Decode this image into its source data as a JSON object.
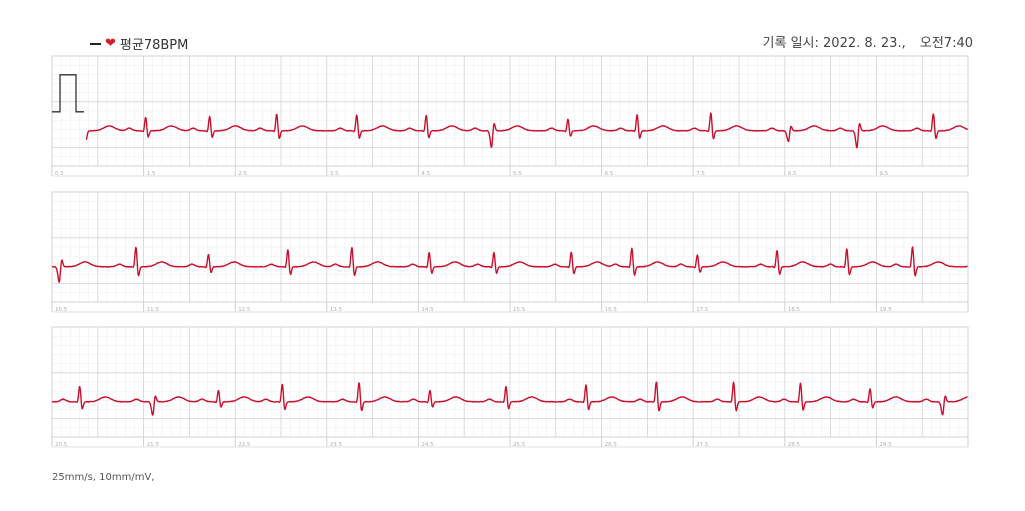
{
  "legend": {
    "dash_icon": "dash-icon",
    "heart_icon": "heart-icon",
    "text": "평균78BPM",
    "heart_color": "#d41f2a"
  },
  "record": {
    "label": "기록 일시:",
    "date": "2022. 8. 23.,",
    "time": "오전7:40"
  },
  "footer": {
    "scale": "25mm/s, 10mm/mV,"
  },
  "colors": {
    "trace": "#c8102e",
    "grid_minor": "#ececec",
    "grid_major": "#d3d3d3",
    "calibration": "#333333"
  },
  "chart_data": {
    "type": "line",
    "title": "",
    "strips": [
      {
        "tick_labels": [
          "0.5",
          "1.5",
          "2.5",
          "3.5",
          "4.5",
          "5.5",
          "6.5",
          "7.5",
          "8.5",
          "9.5"
        ]
      },
      {
        "tick_labels": [
          "10.5",
          "11.5",
          "12.5",
          "13.5",
          "14.5",
          "15.5",
          "16.5",
          "17.5",
          "18.5",
          "19.5"
        ]
      },
      {
        "tick_labels": [
          "20.5",
          "21.5",
          "22.5",
          "23.5",
          "24.5",
          "25.5",
          "26.5",
          "27.5",
          "28.5",
          "29.5"
        ]
      }
    ],
    "seconds_per_strip": 10,
    "heart_rate_bpm": 78,
    "paper_speed_mm_s": 25,
    "gain_mm_mv": 10,
    "grid": true
  }
}
